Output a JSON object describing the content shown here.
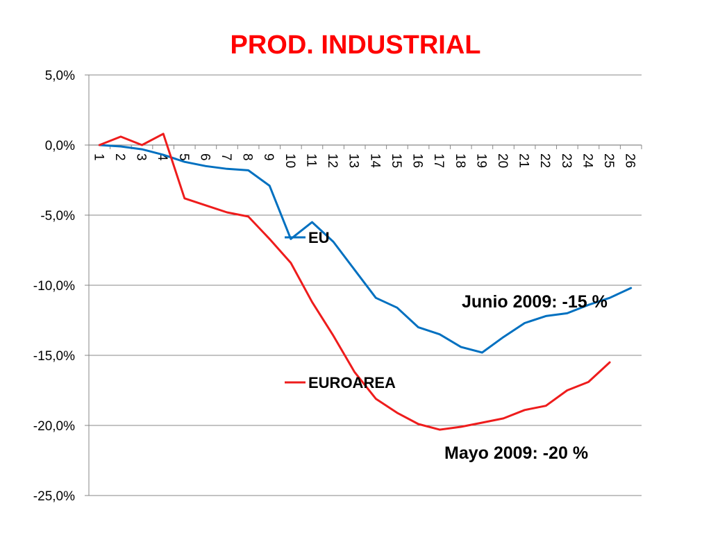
{
  "chart_data": {
    "type": "line",
    "title": "PROD. INDUSTRIAL",
    "title_color": "#ff0000",
    "xlabel": "",
    "ylabel": "",
    "x": [
      1,
      2,
      3,
      4,
      5,
      6,
      7,
      8,
      9,
      10,
      11,
      12,
      13,
      14,
      15,
      16,
      17,
      18,
      19,
      20,
      21,
      22,
      23,
      24,
      25,
      26
    ],
    "ylim": [
      -25,
      5
    ],
    "yticks": [
      5,
      0,
      -5,
      -10,
      -15,
      -20,
      -25
    ],
    "ytick_labels": [
      "5,0%",
      "0,0%",
      "-5,0%",
      "-10,0%",
      "-15,0%",
      "-20,0%",
      "-25,0%"
    ],
    "grid": true,
    "series": [
      {
        "name": "EU",
        "color": "#0070c0",
        "values": [
          0.0,
          -0.1,
          -0.3,
          -0.7,
          -1.2,
          -1.5,
          -1.7,
          -1.8,
          -2.9,
          -6.7,
          -5.5,
          -6.9,
          -8.9,
          -10.9,
          -11.6,
          -13.0,
          -13.5,
          -14.4,
          -14.8,
          -13.7,
          -12.7,
          -12.2,
          -12.0,
          -11.4,
          -10.9,
          -10.2
        ]
      },
      {
        "name": "EUROAREA",
        "color": "#ee1c1c",
        "values": [
          0.0,
          0.6,
          0.0,
          0.8,
          -3.8,
          -4.3,
          -4.8,
          -5.1,
          -6.7,
          -8.4,
          -11.2,
          -13.6,
          -16.2,
          -18.1,
          -19.1,
          -19.9,
          -20.3,
          -20.1,
          -19.8,
          -19.5,
          -18.9,
          -18.6,
          -17.5,
          -16.9,
          -15.5,
          null
        ]
      }
    ],
    "annotations": [
      {
        "text": "Junio 2009: -15 %",
        "series": "EU"
      },
      {
        "text": "Mayo 2009: -20 %",
        "series": "EUROAREA"
      }
    ]
  }
}
